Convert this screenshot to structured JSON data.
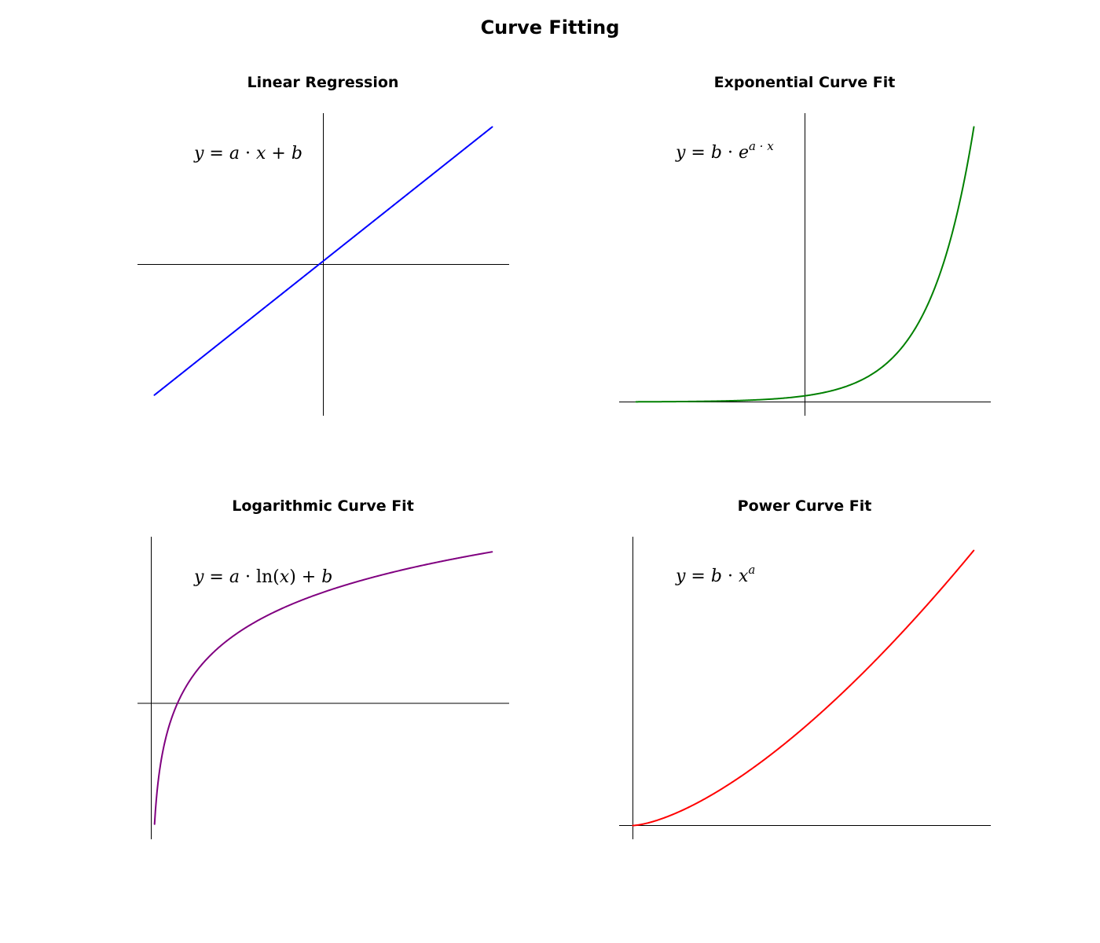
{
  "title": "Curve Fitting",
  "chart_data": [
    {
      "type": "line",
      "title": "Linear Regression",
      "formula": "y = a · x + b",
      "function": "linear",
      "color": "#0000ff",
      "xlim": [
        -5.5,
        5.5
      ],
      "ylim": [
        -5.5,
        5.5
      ],
      "x_range": [
        -5,
        5
      ],
      "x": [
        -5,
        -4,
        -3,
        -2,
        -1,
        0,
        1,
        2,
        3,
        4,
        5
      ],
      "y": [
        -4.75,
        -3.8,
        -2.85,
        -1.9,
        -0.95,
        0.25,
        1.2,
        2.15,
        3.1,
        4.05,
        5.0
      ],
      "grid": false,
      "axes": "centered spines at origin, no ticks"
    },
    {
      "type": "line",
      "title": "Exponential Curve Fit",
      "formula": "y = b · e^(a · x)",
      "function": "exponential",
      "color": "#008000",
      "xlim": [
        -5.5,
        5.5
      ],
      "ylim": [
        -0.5,
        10.5
      ],
      "x_range": [
        -5,
        5
      ],
      "x": [
        -5,
        -4,
        -3,
        -2,
        -1,
        0,
        1,
        2,
        3,
        4,
        5
      ],
      "y": [
        0.005,
        0.011,
        0.025,
        0.055,
        0.12,
        0.22,
        0.49,
        1.1,
        2.3,
        4.8,
        10.0
      ],
      "grid": false,
      "axes": "centered spines at origin, no ticks"
    },
    {
      "type": "line",
      "title": "Logarithmic Curve Fit",
      "formula": "y = a · ln(x) + b",
      "function": "logarithmic",
      "color": "#800080",
      "xlim": [
        -0.4,
        10.5
      ],
      "ylim": [
        -4.5,
        5.5
      ],
      "x_range": [
        0.1,
        10
      ],
      "x": [
        0.1,
        0.5,
        1,
        2,
        3,
        4,
        5,
        6,
        7,
        8,
        9,
        10
      ],
      "y": [
        -4.0,
        -0.5,
        1.0,
        2.5,
        3.2,
        3.6,
        4.0,
        4.2,
        4.45,
        4.65,
        4.8,
        5.0
      ],
      "grid": false,
      "axes": "spines at origin, no ticks"
    },
    {
      "type": "line",
      "title": "Power Curve Fit",
      "formula": "y = b · x^a",
      "function": "power",
      "color": "#ff0000",
      "xlim": [
        -0.4,
        10.5
      ],
      "ylim": [
        -0.5,
        10.5
      ],
      "x_range": [
        0,
        10
      ],
      "x": [
        0,
        1,
        2,
        3,
        4,
        5,
        6,
        7,
        8,
        9,
        10
      ],
      "y": [
        0,
        0.32,
        0.89,
        1.64,
        2.53,
        3.54,
        4.65,
        5.86,
        7.16,
        8.54,
        10.0
      ],
      "grid": false,
      "axes": "spines at origin, no ticks"
    }
  ]
}
